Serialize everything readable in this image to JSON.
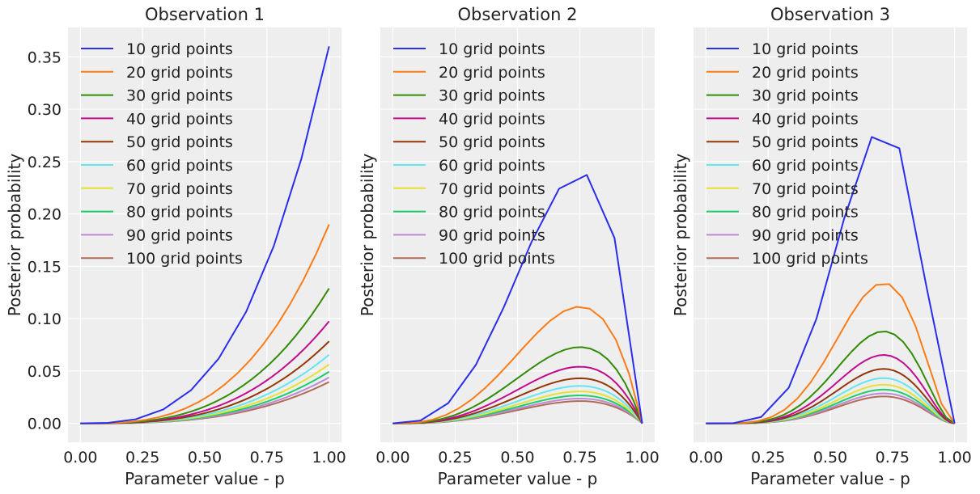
{
  "figure": {
    "facecolor": "#ffffff",
    "axes_facecolor": "#eeeeee",
    "grid_color": "#ffffff"
  },
  "chart_data": [
    {
      "type": "line",
      "title": "Observation 1",
      "xlabel": "Parameter value - p",
      "ylabel": "Posterior probability",
      "xlim": [
        -0.05,
        1.05
      ],
      "ylim": [
        -0.018,
        0.378
      ],
      "xticks": [
        0.0,
        0.25,
        0.5,
        0.75,
        1.0
      ],
      "xtick_labels": [
        "0.00",
        "0.25",
        "0.50",
        "0.75",
        "1.00"
      ],
      "yticks": [
        0.0,
        0.05,
        0.1,
        0.15,
        0.2,
        0.25,
        0.3,
        0.35
      ],
      "ytick_labels": [
        "0.00",
        "0.05",
        "0.10",
        "0.15",
        "0.20",
        "0.25",
        "0.30",
        "0.35"
      ],
      "show_ytick_labels": true,
      "grid": true,
      "legend_position": "top-left",
      "curve": {
        "model": "binomial",
        "n": 3,
        "k": 3
      },
      "series": [
        {
          "name": "10 grid points",
          "grid_points": 10,
          "color": "#2a2eec"
        },
        {
          "name": "20 grid points",
          "grid_points": 20,
          "color": "#fa7c17"
        },
        {
          "name": "30 grid points",
          "grid_points": 30,
          "color": "#328c06"
        },
        {
          "name": "40 grid points",
          "grid_points": 40,
          "color": "#c10c90"
        },
        {
          "name": "50 grid points",
          "grid_points": 50,
          "color": "#933708"
        },
        {
          "name": "60 grid points",
          "grid_points": 60,
          "color": "#65e5f3"
        },
        {
          "name": "70 grid points",
          "grid_points": 70,
          "color": "#e6e135"
        },
        {
          "name": "80 grid points",
          "grid_points": 80,
          "color": "#1ccd6a"
        },
        {
          "name": "90 grid points",
          "grid_points": 90,
          "color": "#bd8ad5"
        },
        {
          "name": "100 grid points",
          "grid_points": 100,
          "color": "#b16b57"
        }
      ]
    },
    {
      "type": "line",
      "title": "Observation 2",
      "xlabel": "Parameter value - p",
      "ylabel": "Posterior probability",
      "xlim": [
        -0.05,
        1.05
      ],
      "ylim": [
        -0.018,
        0.378
      ],
      "xticks": [
        0.0,
        0.25,
        0.5,
        0.75,
        1.0
      ],
      "xtick_labels": [
        "0.00",
        "0.25",
        "0.50",
        "0.75",
        "1.00"
      ],
      "yticks": [
        0.0,
        0.05,
        0.1,
        0.15,
        0.2,
        0.25,
        0.3,
        0.35
      ],
      "ytick_labels": [],
      "show_ytick_labels": false,
      "grid": true,
      "legend_position": "top-left",
      "curve": {
        "model": "binomial",
        "n": 4,
        "k": 3
      },
      "series": [
        {
          "name": "10 grid points",
          "grid_points": 10,
          "color": "#2a2eec"
        },
        {
          "name": "20 grid points",
          "grid_points": 20,
          "color": "#fa7c17"
        },
        {
          "name": "30 grid points",
          "grid_points": 30,
          "color": "#328c06"
        },
        {
          "name": "40 grid points",
          "grid_points": 40,
          "color": "#c10c90"
        },
        {
          "name": "50 grid points",
          "grid_points": 50,
          "color": "#933708"
        },
        {
          "name": "60 grid points",
          "grid_points": 60,
          "color": "#65e5f3"
        },
        {
          "name": "70 grid points",
          "grid_points": 70,
          "color": "#e6e135"
        },
        {
          "name": "80 grid points",
          "grid_points": 80,
          "color": "#1ccd6a"
        },
        {
          "name": "90 grid points",
          "grid_points": 90,
          "color": "#bd8ad5"
        },
        {
          "name": "100 grid points",
          "grid_points": 100,
          "color": "#b16b57"
        }
      ]
    },
    {
      "type": "line",
      "title": "Observation 3",
      "xlabel": "Parameter value - p",
      "ylabel": "Posterior probability",
      "xlim": [
        -0.05,
        1.05
      ],
      "ylim": [
        -0.018,
        0.378
      ],
      "xticks": [
        0.0,
        0.25,
        0.5,
        0.75,
        1.0
      ],
      "xtick_labels": [
        "0.00",
        "0.25",
        "0.50",
        "0.75",
        "1.00"
      ],
      "yticks": [
        0.0,
        0.05,
        0.1,
        0.15,
        0.2,
        0.25,
        0.3,
        0.35
      ],
      "ytick_labels": [],
      "show_ytick_labels": false,
      "grid": true,
      "legend_position": "top-left",
      "curve": {
        "model": "binomial",
        "n": 7,
        "k": 5
      },
      "series": [
        {
          "name": "10 grid points",
          "grid_points": 10,
          "color": "#2a2eec"
        },
        {
          "name": "20 grid points",
          "grid_points": 20,
          "color": "#fa7c17"
        },
        {
          "name": "30 grid points",
          "grid_points": 30,
          "color": "#328c06"
        },
        {
          "name": "40 grid points",
          "grid_points": 40,
          "color": "#c10c90"
        },
        {
          "name": "50 grid points",
          "grid_points": 50,
          "color": "#933708"
        },
        {
          "name": "60 grid points",
          "grid_points": 60,
          "color": "#65e5f3"
        },
        {
          "name": "70 grid points",
          "grid_points": 70,
          "color": "#e6e135"
        },
        {
          "name": "80 grid points",
          "grid_points": 80,
          "color": "#1ccd6a"
        },
        {
          "name": "90 grid points",
          "grid_points": 90,
          "color": "#bd8ad5"
        },
        {
          "name": "100 grid points",
          "grid_points": 100,
          "color": "#b16b57"
        }
      ]
    }
  ]
}
